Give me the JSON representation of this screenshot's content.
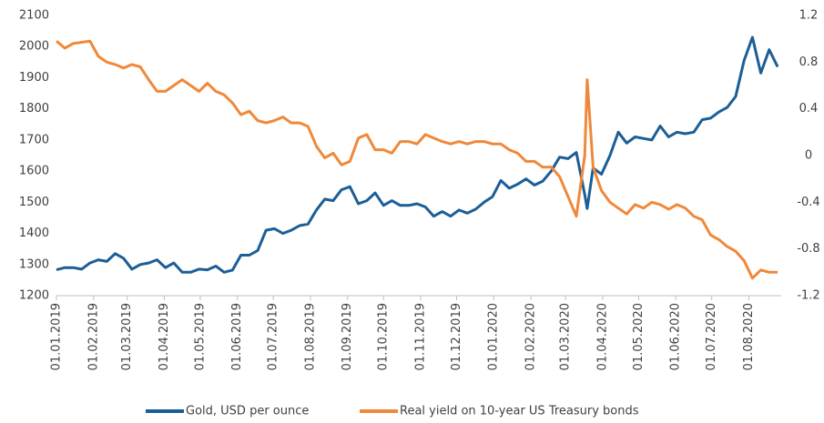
{
  "chart_data": {
    "type": "line",
    "x": [
      "01.01.2019",
      "08.01.2019",
      "15.01.2019",
      "22.01.2019",
      "29.01.2019",
      "05.02.2019",
      "12.02.2019",
      "19.02.2019",
      "26.02.2019",
      "05.03.2019",
      "12.03.2019",
      "19.03.2019",
      "26.03.2019",
      "02.04.2019",
      "09.04.2019",
      "16.04.2019",
      "23.04.2019",
      "30.04.2019",
      "07.05.2019",
      "14.05.2019",
      "21.05.2019",
      "28.05.2019",
      "04.06.2019",
      "11.06.2019",
      "18.06.2019",
      "25.06.2019",
      "02.07.2019",
      "09.07.2019",
      "16.07.2019",
      "23.07.2019",
      "30.07.2019",
      "06.08.2019",
      "13.08.2019",
      "20.08.2019",
      "27.08.2019",
      "03.09.2019",
      "10.09.2019",
      "17.09.2019",
      "24.09.2019",
      "01.10.2019",
      "08.10.2019",
      "15.10.2019",
      "22.10.2019",
      "29.10.2019",
      "05.11.2019",
      "12.11.2019",
      "19.11.2019",
      "26.11.2019",
      "03.12.2019",
      "10.12.2019",
      "17.12.2019",
      "24.12.2019",
      "31.12.2019",
      "07.01.2020",
      "14.01.2020",
      "21.01.2020",
      "28.01.2020",
      "04.02.2020",
      "11.02.2020",
      "18.02.2020",
      "25.02.2020",
      "03.03.2020",
      "10.03.2020",
      "17.03.2020",
      "19.03.2020",
      "24.03.2020",
      "31.03.2020",
      "07.04.2020",
      "14.04.2020",
      "21.04.2020",
      "28.04.2020",
      "05.05.2020",
      "12.05.2020",
      "19.05.2020",
      "26.05.2020",
      "02.06.2020",
      "09.06.2020",
      "16.06.2020",
      "23.06.2020",
      "30.06.2020",
      "07.07.2020",
      "14.07.2020",
      "21.07.2020",
      "28.07.2020",
      "04.08.2020",
      "11.08.2020",
      "18.08.2020",
      "25.08.2020"
    ],
    "series": [
      {
        "name": "Gold, USD per ounce",
        "color": "#1b5e96",
        "values": [
          1283,
          1290,
          1290,
          1285,
          1305,
          1315,
          1310,
          1335,
          1320,
          1285,
          1300,
          1305,
          1315,
          1290,
          1305,
          1275,
          1275,
          1285,
          1283,
          1295,
          1275,
          1282,
          1330,
          1330,
          1345,
          1410,
          1415,
          1400,
          1410,
          1425,
          1430,
          1475,
          1510,
          1505,
          1540,
          1550,
          1495,
          1505,
          1530,
          1490,
          1505,
          1490,
          1490,
          1495,
          1485,
          1455,
          1470,
          1455,
          1475,
          1465,
          1478,
          1500,
          1518,
          1570,
          1545,
          1558,
          1575,
          1555,
          1568,
          1600,
          1645,
          1640,
          1660,
          1525,
          1480,
          1610,
          1590,
          1650,
          1725,
          1690,
          1710,
          1705,
          1700,
          1745,
          1710,
          1725,
          1720,
          1725,
          1765,
          1770,
          1790,
          1805,
          1840,
          1955,
          2030,
          1915,
          1990,
          1935
        ]
      },
      {
        "name": "Real yield on 10-year US Treasury bonds",
        "color": "#f0883a",
        "axis": "y2",
        "values": [
          0.98,
          0.92,
          0.96,
          0.97,
          0.98,
          0.85,
          0.8,
          0.78,
          0.75,
          0.78,
          0.76,
          0.65,
          0.55,
          0.55,
          0.6,
          0.65,
          0.6,
          0.55,
          0.62,
          0.55,
          0.52,
          0.45,
          0.35,
          0.38,
          0.3,
          0.28,
          0.3,
          0.33,
          0.28,
          0.28,
          0.25,
          0.08,
          -0.02,
          0.02,
          -0.08,
          -0.05,
          0.15,
          0.18,
          0.05,
          0.05,
          0.02,
          0.12,
          0.12,
          0.1,
          0.18,
          0.15,
          0.12,
          0.1,
          0.12,
          0.1,
          0.12,
          0.12,
          0.1,
          0.1,
          0.05,
          0.02,
          -0.05,
          -0.05,
          -0.1,
          -0.1,
          -0.18,
          -0.35,
          -0.52,
          0.0,
          0.65,
          -0.1,
          -0.3,
          -0.4,
          -0.45,
          -0.5,
          -0.42,
          -0.45,
          -0.4,
          -0.42,
          -0.46,
          -0.42,
          -0.45,
          -0.52,
          -0.55,
          -0.68,
          -0.72,
          -0.78,
          -0.82,
          -0.9,
          -1.05,
          -0.98,
          -1.0,
          -1.0
        ]
      }
    ],
    "xlim": [
      "01.01.2019",
      "28.08.2020"
    ],
    "xticks": [
      "01.01.2019",
      "01.02.2019",
      "01.03.2019",
      "01.04.2019",
      "01.05.2019",
      "01.06.2019",
      "01.07.2019",
      "01.08.2019",
      "01.09.2019",
      "01.10.2019",
      "01.11.2019",
      "01.12.2019",
      "01.01.2020",
      "01.02.2020",
      "01.03.2020",
      "01.04.2020",
      "01.05.2020",
      "01.06.2020",
      "01.07.2020",
      "01.08.2020"
    ],
    "ylim": [
      1200,
      2100
    ],
    "yticks": [
      1200,
      1300,
      1400,
      1500,
      1600,
      1700,
      1800,
      1900,
      2000,
      2100
    ],
    "y2lim": [
      -1.2,
      1.2
    ],
    "y2ticks": [
      -1.2,
      -0.8,
      -0.4,
      0,
      0.4,
      0.8,
      1.2
    ],
    "grid": false,
    "legend": "bottom"
  }
}
